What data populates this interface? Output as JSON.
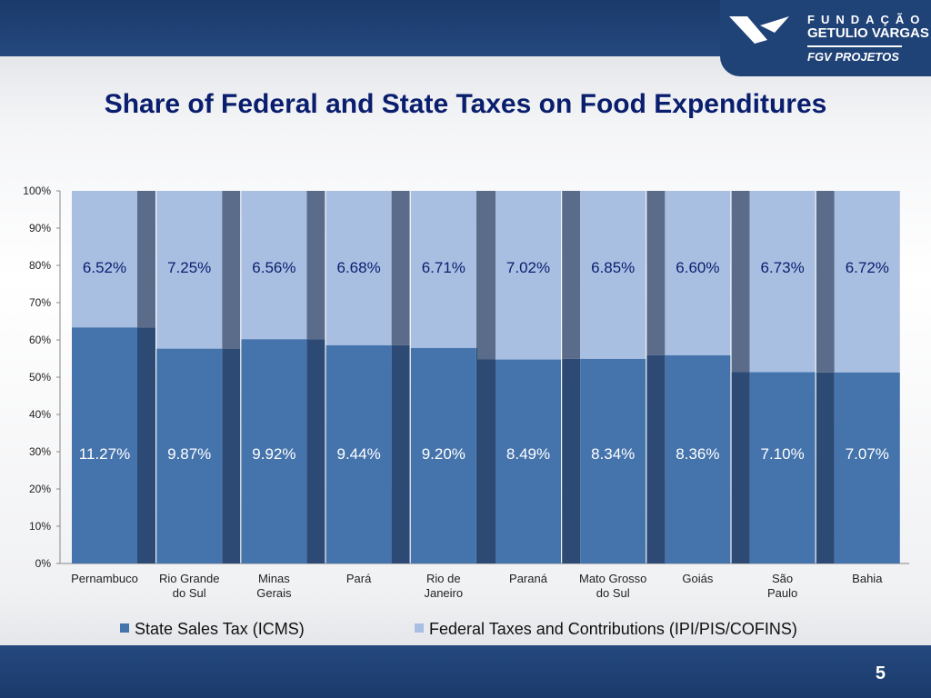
{
  "logo": {
    "line1": "FUNDAÇÃO",
    "line2": "GETULIO VARGAS",
    "line3": "FGV PROJETOS"
  },
  "slide": {
    "title": "Share of Federal and State Taxes on Food Expenditures",
    "page_number": "5"
  },
  "chart_data": {
    "type": "bar",
    "stacked": "percent",
    "title": "Share of Federal and State Taxes on Food Expenditures",
    "categories": [
      "Pernambuco",
      "Rio Grande do Sul",
      "Minas Gerais",
      "Pará",
      "Rio de Janeiro",
      "Paraná",
      "Mato Grosso do Sul",
      "Goiás",
      "São Paulo",
      "Bahia"
    ],
    "series": [
      {
        "name": "State Sales Tax (ICMS)",
        "color": "#4574ad",
        "values": [
          11.27,
          9.87,
          9.92,
          9.44,
          9.2,
          8.49,
          8.34,
          8.36,
          7.1,
          7.07
        ],
        "labels": [
          "11.27%",
          "9.87%",
          "9.92%",
          "9.44%",
          "9.20%",
          "8.49%",
          "8.34%",
          "8.36%",
          "7.10%",
          "7.07%"
        ]
      },
      {
        "name": "Federal Taxes and Contributions (IPI/PIS/COFINS)",
        "color": "#a9bfe2",
        "values": [
          6.52,
          7.25,
          6.56,
          6.68,
          6.71,
          7.02,
          6.85,
          6.6,
          6.73,
          6.72
        ],
        "labels": [
          "6.52%",
          "7.25%",
          "6.56%",
          "6.68%",
          "6.71%",
          "7.02%",
          "6.85%",
          "6.60%",
          "6.73%",
          "6.72%"
        ]
      }
    ],
    "yticks": [
      "0%",
      "10%",
      "20%",
      "30%",
      "40%",
      "50%",
      "60%",
      "70%",
      "80%",
      "90%",
      "100%"
    ],
    "ylim": [
      0,
      100
    ],
    "grid": false,
    "legend": "bottom"
  }
}
